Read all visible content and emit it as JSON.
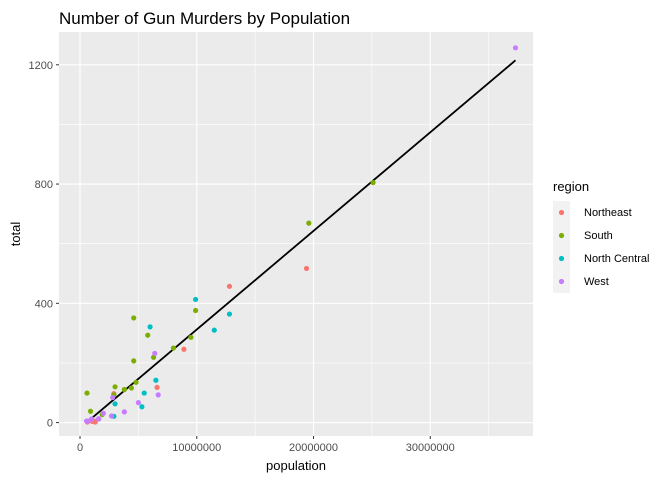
{
  "chart_data": {
    "type": "scatter",
    "title": "Number of Gun Murders by Population",
    "xlabel": "population",
    "ylabel": "total",
    "xlim": [
      -1800000,
      38800000
    ],
    "ylim": [
      -45,
      1310
    ],
    "xticks": [
      0,
      10000000,
      20000000,
      30000000
    ],
    "xtick_labels": [
      "0",
      "10000000",
      "20000000",
      "30000000"
    ],
    "yticks": [
      0,
      400,
      800,
      1200
    ],
    "ytick_labels": [
      "0",
      "400",
      "800",
      "1200"
    ],
    "grid": true,
    "legend": {
      "title": "region",
      "position": "right"
    },
    "series": [
      {
        "name": "Northeast",
        "color": "#F8766D",
        "points": [
          [
            1300000,
            2
          ],
          [
            1300000,
            5
          ],
          [
            1050000,
            4
          ],
          [
            630000,
            2
          ],
          [
            2900000,
            97
          ],
          [
            8900000,
            246
          ],
          [
            6600000,
            118
          ],
          [
            12800000,
            457
          ],
          [
            19400000,
            517
          ]
        ]
      },
      {
        "name": "South",
        "color": "#7CAE00",
        "points": [
          [
            4800000,
            135
          ],
          [
            2900000,
            93
          ],
          [
            900000,
            38
          ],
          [
            19600000,
            669
          ],
          [
            9900000,
            376
          ],
          [
            4400000,
            116
          ],
          [
            4600000,
            351
          ],
          [
            5800000,
            293
          ],
          [
            3000000,
            120
          ],
          [
            9500000,
            286
          ],
          [
            3800000,
            111
          ],
          [
            4600000,
            207
          ],
          [
            6300000,
            219
          ],
          [
            25100000,
            805
          ],
          [
            8000000,
            250
          ],
          [
            1900000,
            27
          ],
          [
            600000,
            99
          ]
        ]
      },
      {
        "name": "North Central",
        "color": "#00BFC4",
        "points": [
          [
            2900000,
            21
          ],
          [
            3000000,
            63
          ],
          [
            5300000,
            53
          ],
          [
            5500000,
            99
          ],
          [
            6500000,
            142
          ],
          [
            6000000,
            321
          ],
          [
            9900000,
            413
          ],
          [
            12800000,
            364
          ],
          [
            11500000,
            310
          ]
        ]
      },
      {
        "name": "West",
        "color": "#C77CFF",
        "points": [
          [
            37300000,
            1257
          ],
          [
            6400000,
            232
          ],
          [
            6700000,
            93
          ],
          [
            5000000,
            67
          ],
          [
            2700000,
            22
          ],
          [
            3800000,
            36
          ],
          [
            2000000,
            31
          ],
          [
            1600000,
            12
          ],
          [
            700000,
            5
          ],
          [
            1600000,
            13
          ],
          [
            560000,
            5
          ],
          [
            2800000,
            84
          ],
          [
            1000000,
            12
          ]
        ]
      }
    ],
    "fit_line": {
      "color": "#000000",
      "from": [
        560000,
        0
      ],
      "to": [
        37300000,
        1215
      ]
    }
  }
}
